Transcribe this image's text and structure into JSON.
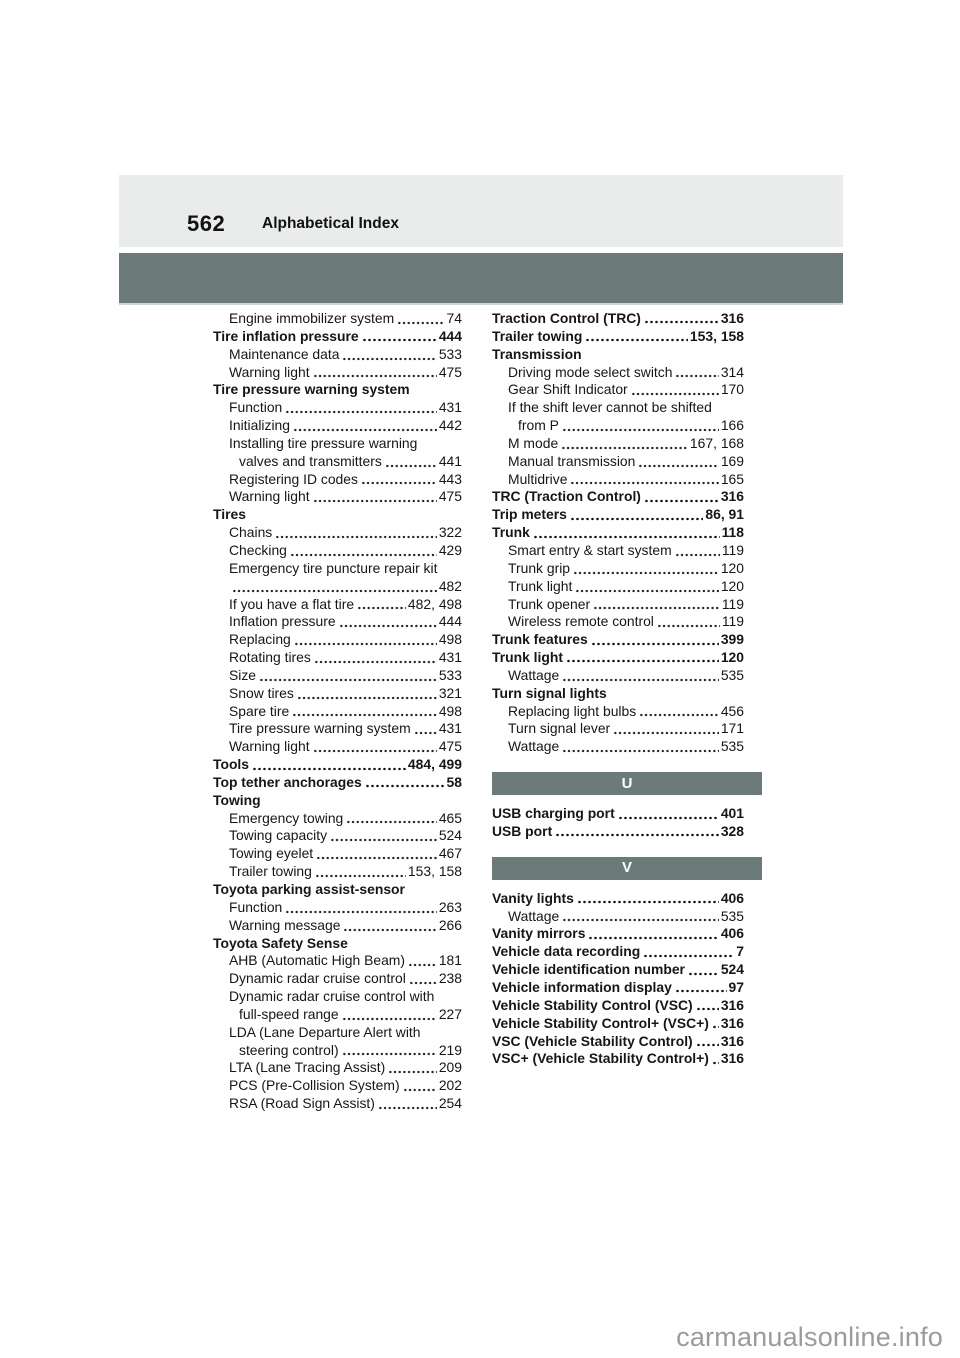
{
  "header": {
    "page_number": "562",
    "title": "Alphabetical Index"
  },
  "watermark": {
    "text": "carmanualsonline.info"
  },
  "colors": {
    "header_band": "#e9eceb",
    "chapter_band": "#6c7b7a",
    "section_band": "#6c7b7a",
    "band_edge": "#ccd9d8",
    "section_letter": "#ffffff",
    "text": "#161616",
    "watermark": "#9b9b9b"
  },
  "index": {
    "left_column": [
      {
        "text": "Engine immobilizer system",
        "page": "74",
        "level": "sub"
      },
      {
        "text": "Tire inflation pressure",
        "page": "444",
        "level": "main"
      },
      {
        "text": "Maintenance data",
        "page": "533",
        "level": "sub"
      },
      {
        "text": "Warning light",
        "page": "475",
        "level": "sub"
      },
      {
        "text": "Tire pressure warning system",
        "page": null,
        "level": "main"
      },
      {
        "text": "Function",
        "page": "431",
        "level": "sub"
      },
      {
        "text": "Initializing",
        "page": "442",
        "level": "sub"
      },
      {
        "text": "Installing tire pressure warning",
        "page": null,
        "level": "sub"
      },
      {
        "text": "valves and transmitters",
        "page": "441",
        "level": "cont"
      },
      {
        "text": "Registering ID codes",
        "page": "443",
        "level": "sub"
      },
      {
        "text": "Warning light",
        "page": "475",
        "level": "sub"
      },
      {
        "text": "Tires",
        "page": null,
        "level": "main"
      },
      {
        "text": "Chains",
        "page": "322",
        "level": "sub"
      },
      {
        "text": "Checking",
        "page": "429",
        "level": "sub"
      },
      {
        "text": "Emergency tire puncture repair kit",
        "page": null,
        "level": "sub"
      },
      {
        "text": "",
        "page": "482",
        "level": "sub"
      },
      {
        "text": "If you have a flat tire",
        "page": "482, 498",
        "level": "sub"
      },
      {
        "text": "Inflation pressure",
        "page": "444",
        "level": "sub"
      },
      {
        "text": "Replacing",
        "page": "498",
        "level": "sub"
      },
      {
        "text": "Rotating tires",
        "page": "431",
        "level": "sub"
      },
      {
        "text": "Size",
        "page": "533",
        "level": "sub"
      },
      {
        "text": "Snow tires",
        "page": "321",
        "level": "sub"
      },
      {
        "text": "Spare tire",
        "page": "498",
        "level": "sub"
      },
      {
        "text": "Tire pressure warning system",
        "page": "431",
        "level": "sub"
      },
      {
        "text": "Warning light",
        "page": "475",
        "level": "sub"
      },
      {
        "text": "Tools",
        "page": "484, 499",
        "level": "main"
      },
      {
        "text": "Top tether anchorages",
        "page": "58",
        "level": "main"
      },
      {
        "text": "Towing",
        "page": null,
        "level": "main"
      },
      {
        "text": "Emergency towing",
        "page": "465",
        "level": "sub"
      },
      {
        "text": "Towing capacity",
        "page": "524",
        "level": "sub"
      },
      {
        "text": "Towing eyelet",
        "page": "467",
        "level": "sub"
      },
      {
        "text": "Trailer towing",
        "page": "153, 158",
        "level": "sub"
      },
      {
        "text": "Toyota parking assist-sensor",
        "page": null,
        "level": "main"
      },
      {
        "text": "Function",
        "page": "263",
        "level": "sub"
      },
      {
        "text": "Warning message",
        "page": "266",
        "level": "sub"
      },
      {
        "text": "Toyota Safety Sense",
        "page": null,
        "level": "main"
      },
      {
        "text": "AHB (Automatic High Beam)",
        "page": "181",
        "level": "sub"
      },
      {
        "text": "Dynamic radar cruise control",
        "page": "238",
        "level": "sub"
      },
      {
        "text": "Dynamic radar cruise control with",
        "page": null,
        "level": "sub"
      },
      {
        "text": "full-speed range",
        "page": "227",
        "level": "cont"
      },
      {
        "text": "LDA (Lane Departure Alert with",
        "page": null,
        "level": "sub"
      },
      {
        "text": "steering control)",
        "page": "219",
        "level": "cont"
      },
      {
        "text": "LTA (Lane Tracing Assist)",
        "page": "209",
        "level": "sub"
      },
      {
        "text": "PCS (Pre-Collision System)",
        "page": "202",
        "level": "sub"
      },
      {
        "text": "RSA (Road Sign Assist)",
        "page": "254",
        "level": "sub"
      }
    ],
    "right_column": [
      {
        "type": "entries",
        "items": [
          {
            "text": "Traction Control (TRC)",
            "page": "316",
            "level": "main"
          },
          {
            "text": "Trailer towing",
            "page": "153, 158",
            "level": "main"
          },
          {
            "text": "Transmission",
            "page": null,
            "level": "main"
          },
          {
            "text": "Driving mode select switch",
            "page": "314",
            "level": "sub"
          },
          {
            "text": "Gear Shift Indicator",
            "page": "170",
            "level": "sub"
          },
          {
            "text": "If the shift lever cannot be shifted",
            "page": null,
            "level": "sub"
          },
          {
            "text": "from P",
            "page": "166",
            "level": "cont"
          },
          {
            "text": "M mode",
            "page": "167, 168",
            "level": "sub"
          },
          {
            "text": "Manual transmission",
            "page": "169",
            "level": "sub"
          },
          {
            "text": "Multidrive",
            "page": "165",
            "level": "sub"
          },
          {
            "text": "TRC (Traction Control)",
            "page": "316",
            "level": "main"
          },
          {
            "text": "Trip meters",
            "page": "86, 91",
            "level": "main"
          },
          {
            "text": "Trunk",
            "page": "118",
            "level": "main"
          },
          {
            "text": "Smart entry & start system",
            "page": "119",
            "level": "sub"
          },
          {
            "text": "Trunk grip",
            "page": "120",
            "level": "sub"
          },
          {
            "text": "Trunk light",
            "page": "120",
            "level": "sub"
          },
          {
            "text": "Trunk opener",
            "page": "119",
            "level": "sub"
          },
          {
            "text": "Wireless remote control",
            "page": "119",
            "level": "sub"
          },
          {
            "text": "Trunk features",
            "page": "399",
            "level": "main"
          },
          {
            "text": "Trunk light",
            "page": "120",
            "level": "main"
          },
          {
            "text": "Wattage",
            "page": "535",
            "level": "sub"
          },
          {
            "text": "Turn signal lights",
            "page": null,
            "level": "main"
          },
          {
            "text": "Replacing light bulbs",
            "page": "456",
            "level": "sub"
          },
          {
            "text": "Turn signal lever",
            "page": "171",
            "level": "sub"
          },
          {
            "text": "Wattage",
            "page": "535",
            "level": "sub"
          }
        ]
      },
      {
        "type": "band",
        "label": "U"
      },
      {
        "type": "entries",
        "items": [
          {
            "text": "USB charging port",
            "page": "401",
            "level": "main"
          },
          {
            "text": "USB port",
            "page": "328",
            "level": "main"
          }
        ]
      },
      {
        "type": "band",
        "label": "V"
      },
      {
        "type": "entries",
        "items": [
          {
            "text": "Vanity lights",
            "page": "406",
            "level": "main"
          },
          {
            "text": "Wattage",
            "page": "535",
            "level": "sub"
          },
          {
            "text": "Vanity mirrors",
            "page": "406",
            "level": "main"
          },
          {
            "text": "Vehicle data recording",
            "page": "7",
            "level": "main"
          },
          {
            "text": "Vehicle identification number",
            "page": "524",
            "level": "main"
          },
          {
            "text": "Vehicle information display",
            "page": "97",
            "level": "main"
          },
          {
            "text": "Vehicle Stability Control (VSC)",
            "page": "316",
            "level": "main"
          },
          {
            "text": "Vehicle Stability Control+ (VSC+)",
            "page": "316",
            "level": "main"
          },
          {
            "text": "VSC (Vehicle Stability Control)",
            "page": "316",
            "level": "main"
          },
          {
            "text": "VSC+ (Vehicle Stability Control+)",
            "page": "316",
            "level": "main"
          }
        ]
      }
    ]
  }
}
